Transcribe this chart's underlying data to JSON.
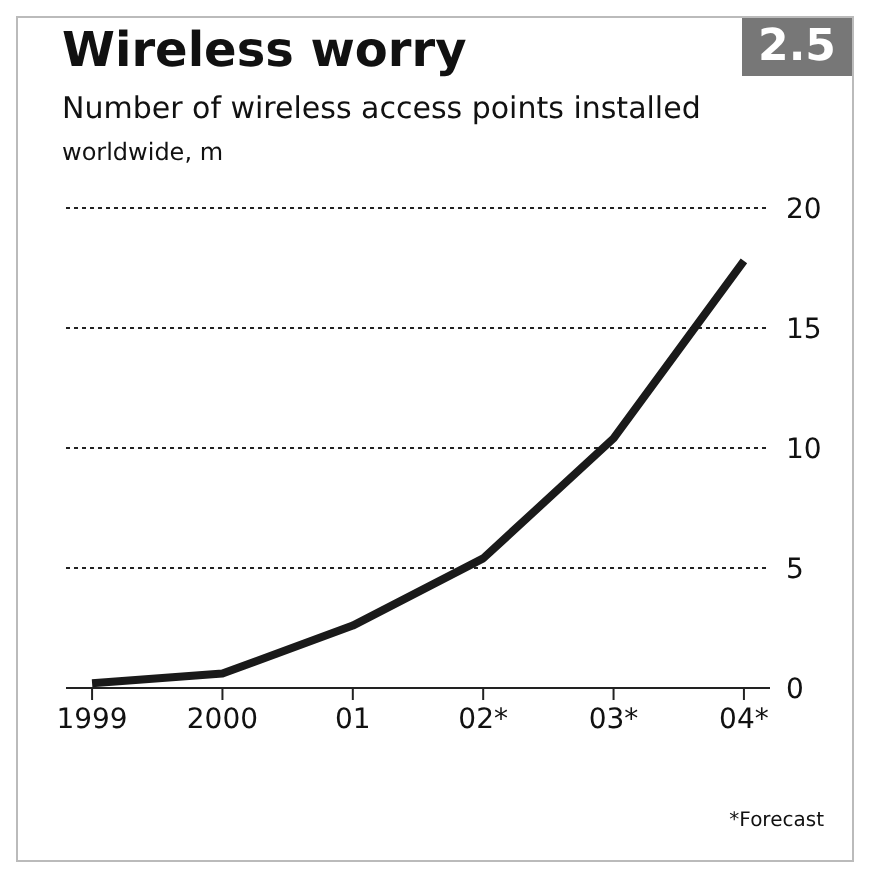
{
  "chart_data": {
    "type": "line",
    "title": "Wireless worry",
    "subtitle": "Number of wireless access points installed",
    "ylabel": "worldwide, m",
    "categories": [
      "1999",
      "2000",
      "01",
      "02*",
      "03*",
      "04*"
    ],
    "series": [
      {
        "color": "#1a1a1a",
        "values": [
          0.2,
          0.6,
          2.6,
          5.4,
          10.4,
          17.8
        ]
      }
    ],
    "ylim": [
      0,
      20
    ],
    "yticks": [
      0,
      5,
      10,
      15,
      20
    ],
    "grid": "y",
    "line_style": "solid",
    "marker": "none",
    "annotations": [
      "2.5",
      "*Forecast"
    ]
  }
}
